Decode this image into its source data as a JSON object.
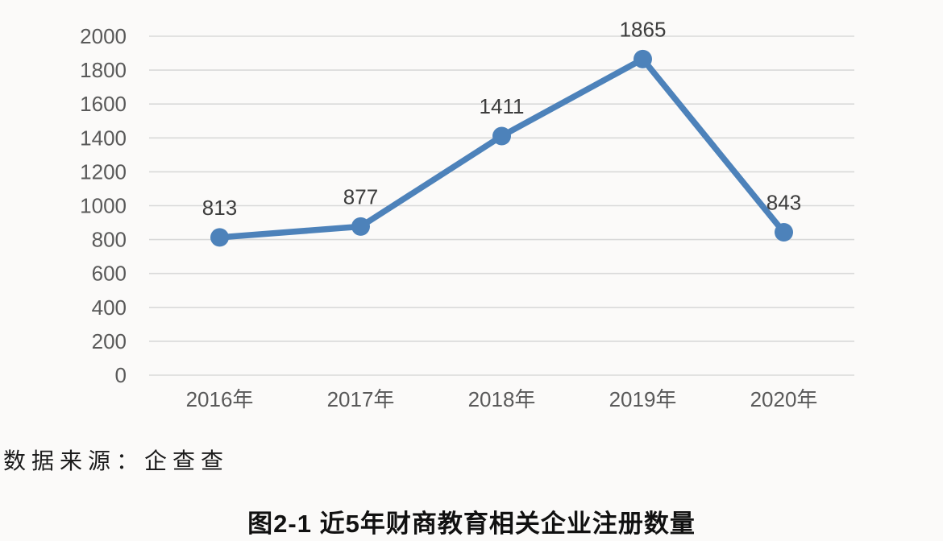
{
  "chart_data": {
    "type": "line",
    "categories": [
      "2016年",
      "2017年",
      "2018年",
      "2019年",
      "2020年"
    ],
    "values": [
      813,
      877,
      1411,
      1865,
      843
    ],
    "series_name": "企业注册数量",
    "title": "图2-1 近5年财商教育相关企业注册数量",
    "xlabel": "",
    "ylabel": "",
    "ylim": [
      0,
      2000
    ],
    "ytick_step": 200,
    "grid": true,
    "legend": false,
    "marker": "circle"
  },
  "source_note": "数据来源：企查查",
  "caption": "图2-1 近5年财商教育相关企业注册数量",
  "colors": {
    "line": "#4d82ba",
    "grid": "#d9d9d9",
    "tick_text": "#595959",
    "data_label_text": "#3d3d3d",
    "background": "#fbfaf9"
  }
}
